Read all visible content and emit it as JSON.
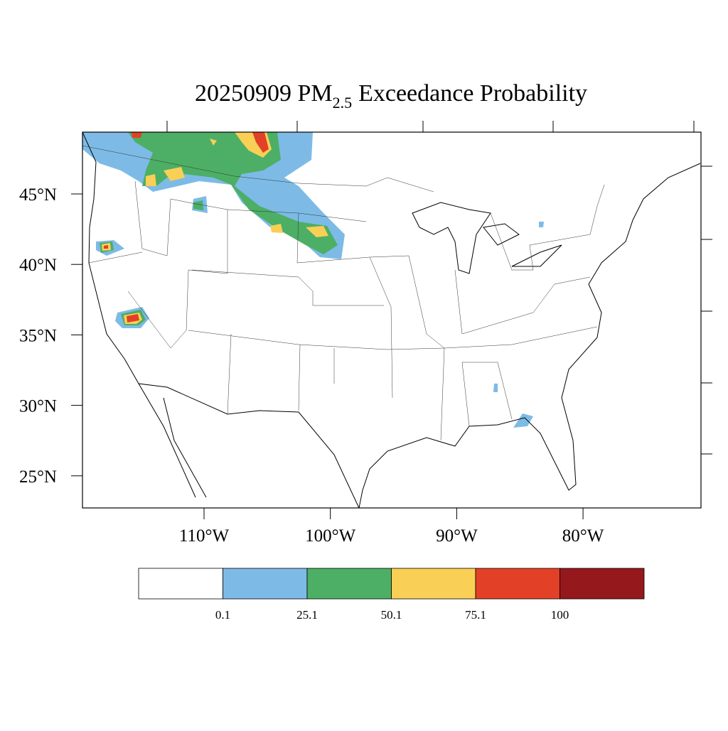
{
  "title": {
    "main": "20250909 PM",
    "subscript": "2.5",
    "rest": "Exceedance Probability"
  },
  "map": {
    "lat_ticks": [
      {
        "value": 45,
        "label": "45°N"
      },
      {
        "value": 40,
        "label": "40°N"
      },
      {
        "value": 35,
        "label": "35°N"
      },
      {
        "value": 30,
        "label": "30°N"
      },
      {
        "value": 25,
        "label": "25°N"
      }
    ],
    "lon_ticks": [
      {
        "value": -110,
        "label": "110°W"
      },
      {
        "value": -100,
        "label": "100°W"
      },
      {
        "value": -90,
        "label": "90°W"
      },
      {
        "value": -80,
        "label": "80°W"
      }
    ]
  },
  "colorbar": {
    "colors": [
      "#ffffff",
      "#7dbbe6",
      "#4caf65",
      "#f9cf55",
      "#e34127",
      "#95181d"
    ],
    "labels": [
      0.1,
      25.1,
      50.1,
      75.1,
      100
    ]
  }
}
